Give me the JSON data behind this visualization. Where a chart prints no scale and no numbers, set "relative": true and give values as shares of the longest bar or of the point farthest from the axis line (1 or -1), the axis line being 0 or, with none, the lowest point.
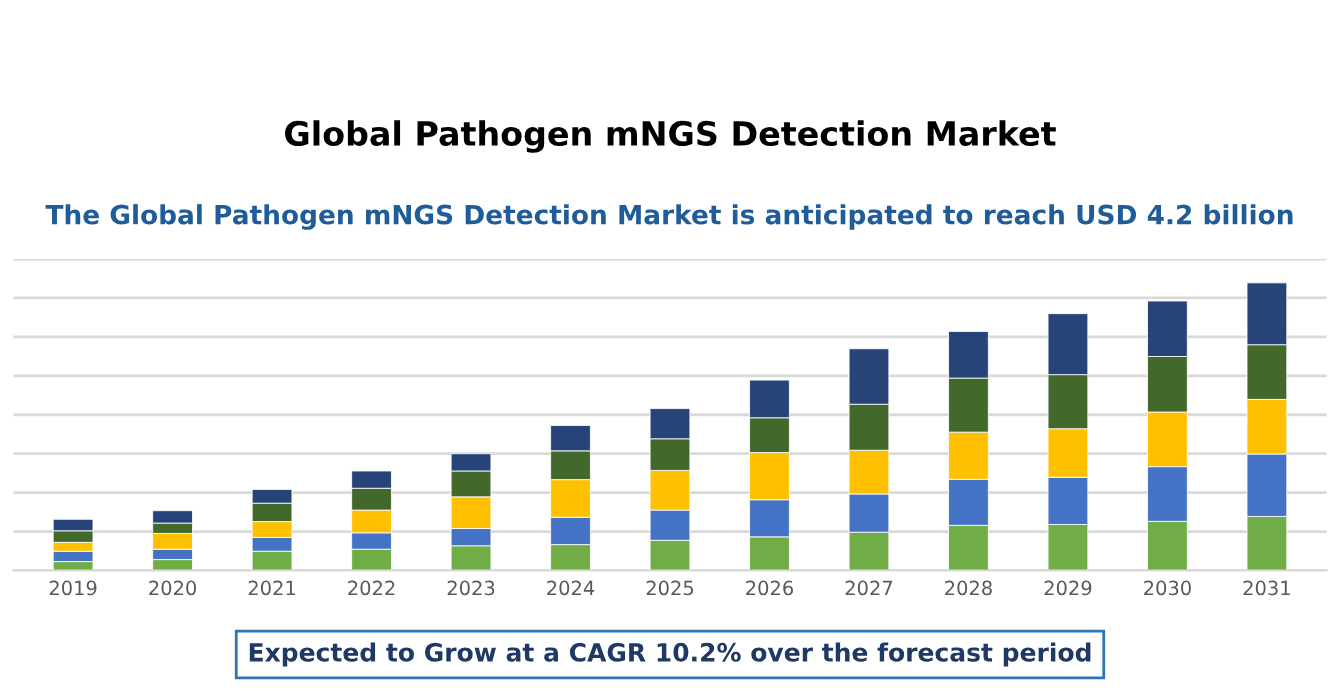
{
  "chart_data": {
    "type": "bar",
    "title": "Global Pathogen mNGS Detection Market",
    "subtitle": "The Global Pathogen mNGS Detection Market is anticipated to reach USD 4.2 billion",
    "annotations": [
      "Expected to Grow at a CAGR 10.2% over the forecast period"
    ],
    "categories": [
      "2019",
      "2020",
      "2021",
      "2022",
      "2023",
      "2024",
      "2025",
      "2026",
      "2027",
      "2028",
      "2029",
      "2030",
      "2031"
    ],
    "stacked": true,
    "relative": true,
    "grid": "y",
    "legend": false,
    "series": [
      {
        "color": "#70ad47",
        "values": [
          0.031,
          0.038,
          0.067,
          0.074,
          0.086,
          0.09,
          0.105,
          0.117,
          0.133,
          0.157,
          0.16,
          0.171,
          0.188
        ]
      },
      {
        "color": "#4472c4",
        "values": [
          0.036,
          0.036,
          0.048,
          0.057,
          0.06,
          0.095,
          0.105,
          0.129,
          0.133,
          0.16,
          0.164,
          0.19,
          0.217
        ]
      },
      {
        "color": "#ffc000",
        "values": [
          0.031,
          0.055,
          0.055,
          0.079,
          0.11,
          0.131,
          0.138,
          0.164,
          0.152,
          0.164,
          0.169,
          0.19,
          0.19
        ]
      },
      {
        "color": "#43682b",
        "values": [
          0.04,
          0.036,
          0.064,
          0.076,
          0.09,
          0.1,
          0.11,
          0.121,
          0.16,
          0.188,
          0.188,
          0.193,
          0.19
        ]
      },
      {
        "color": "#264478",
        "values": [
          0.04,
          0.043,
          0.048,
          0.06,
          0.06,
          0.088,
          0.105,
          0.131,
          0.193,
          0.162,
          0.212,
          0.193,
          0.215
        ]
      }
    ]
  }
}
